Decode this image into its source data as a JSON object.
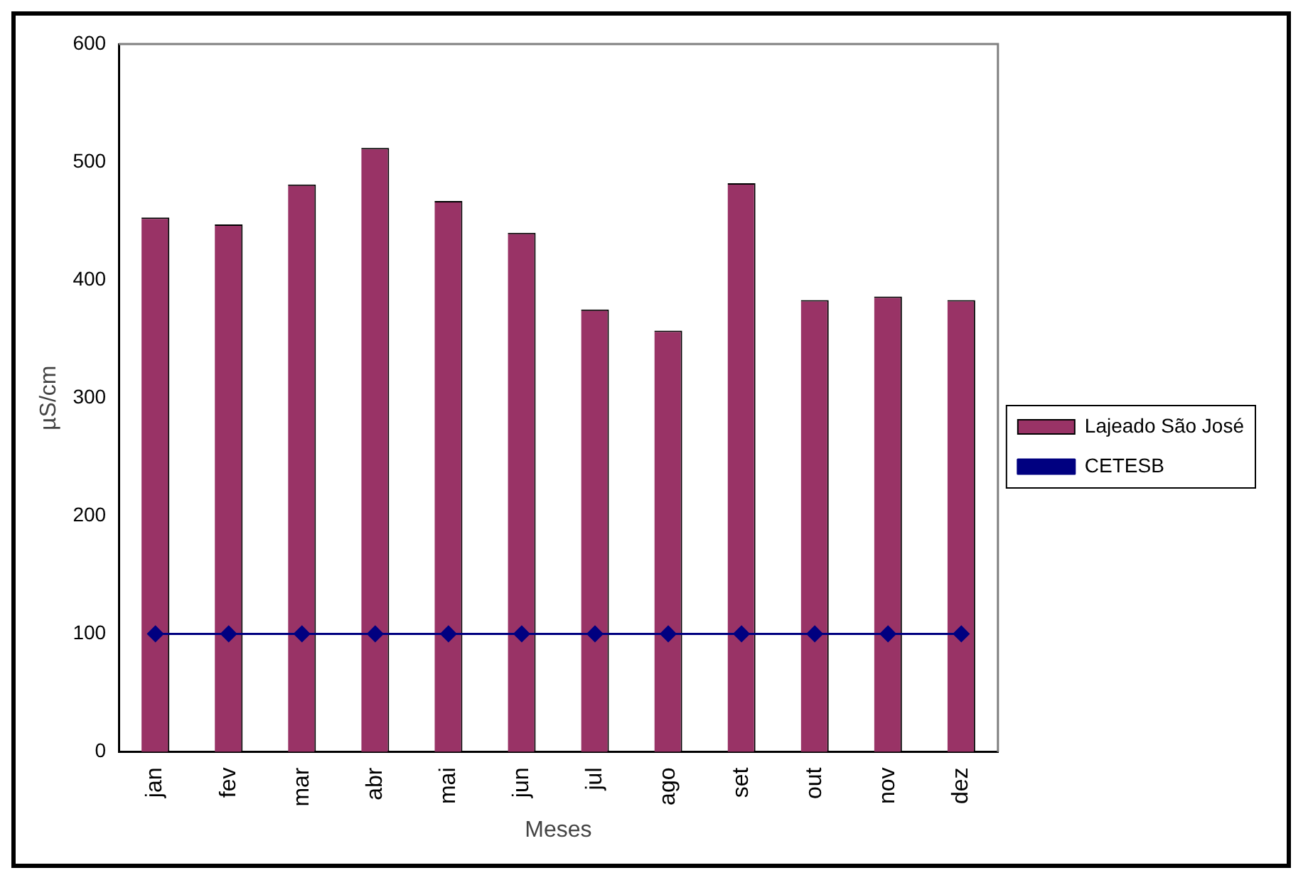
{
  "chart_data": {
    "type": "bar",
    "xlabel": "Meses",
    "ylabel": "µS/cm",
    "categories": [
      "jan",
      "fev",
      "mar",
      "abr",
      "mai",
      "jun",
      "jul",
      "ago",
      "set",
      "out",
      "nov",
      "dez"
    ],
    "series": [
      {
        "name": "Lajeado São José",
        "color": "#993366",
        "values": [
          453,
          447,
          481,
          512,
          467,
          440,
          375,
          357,
          482,
          383,
          386,
          383
        ]
      },
      {
        "name": "CETESB",
        "type": "line",
        "color": "#000080",
        "values": [
          100,
          100,
          100,
          100,
          100,
          100,
          100,
          100,
          100,
          100,
          100,
          100
        ],
        "marker": "diamond"
      }
    ],
    "ylim": [
      0,
      600
    ],
    "yticks": [
      0,
      100,
      200,
      300,
      400,
      500,
      600
    ],
    "grid": false,
    "legend": "right"
  }
}
